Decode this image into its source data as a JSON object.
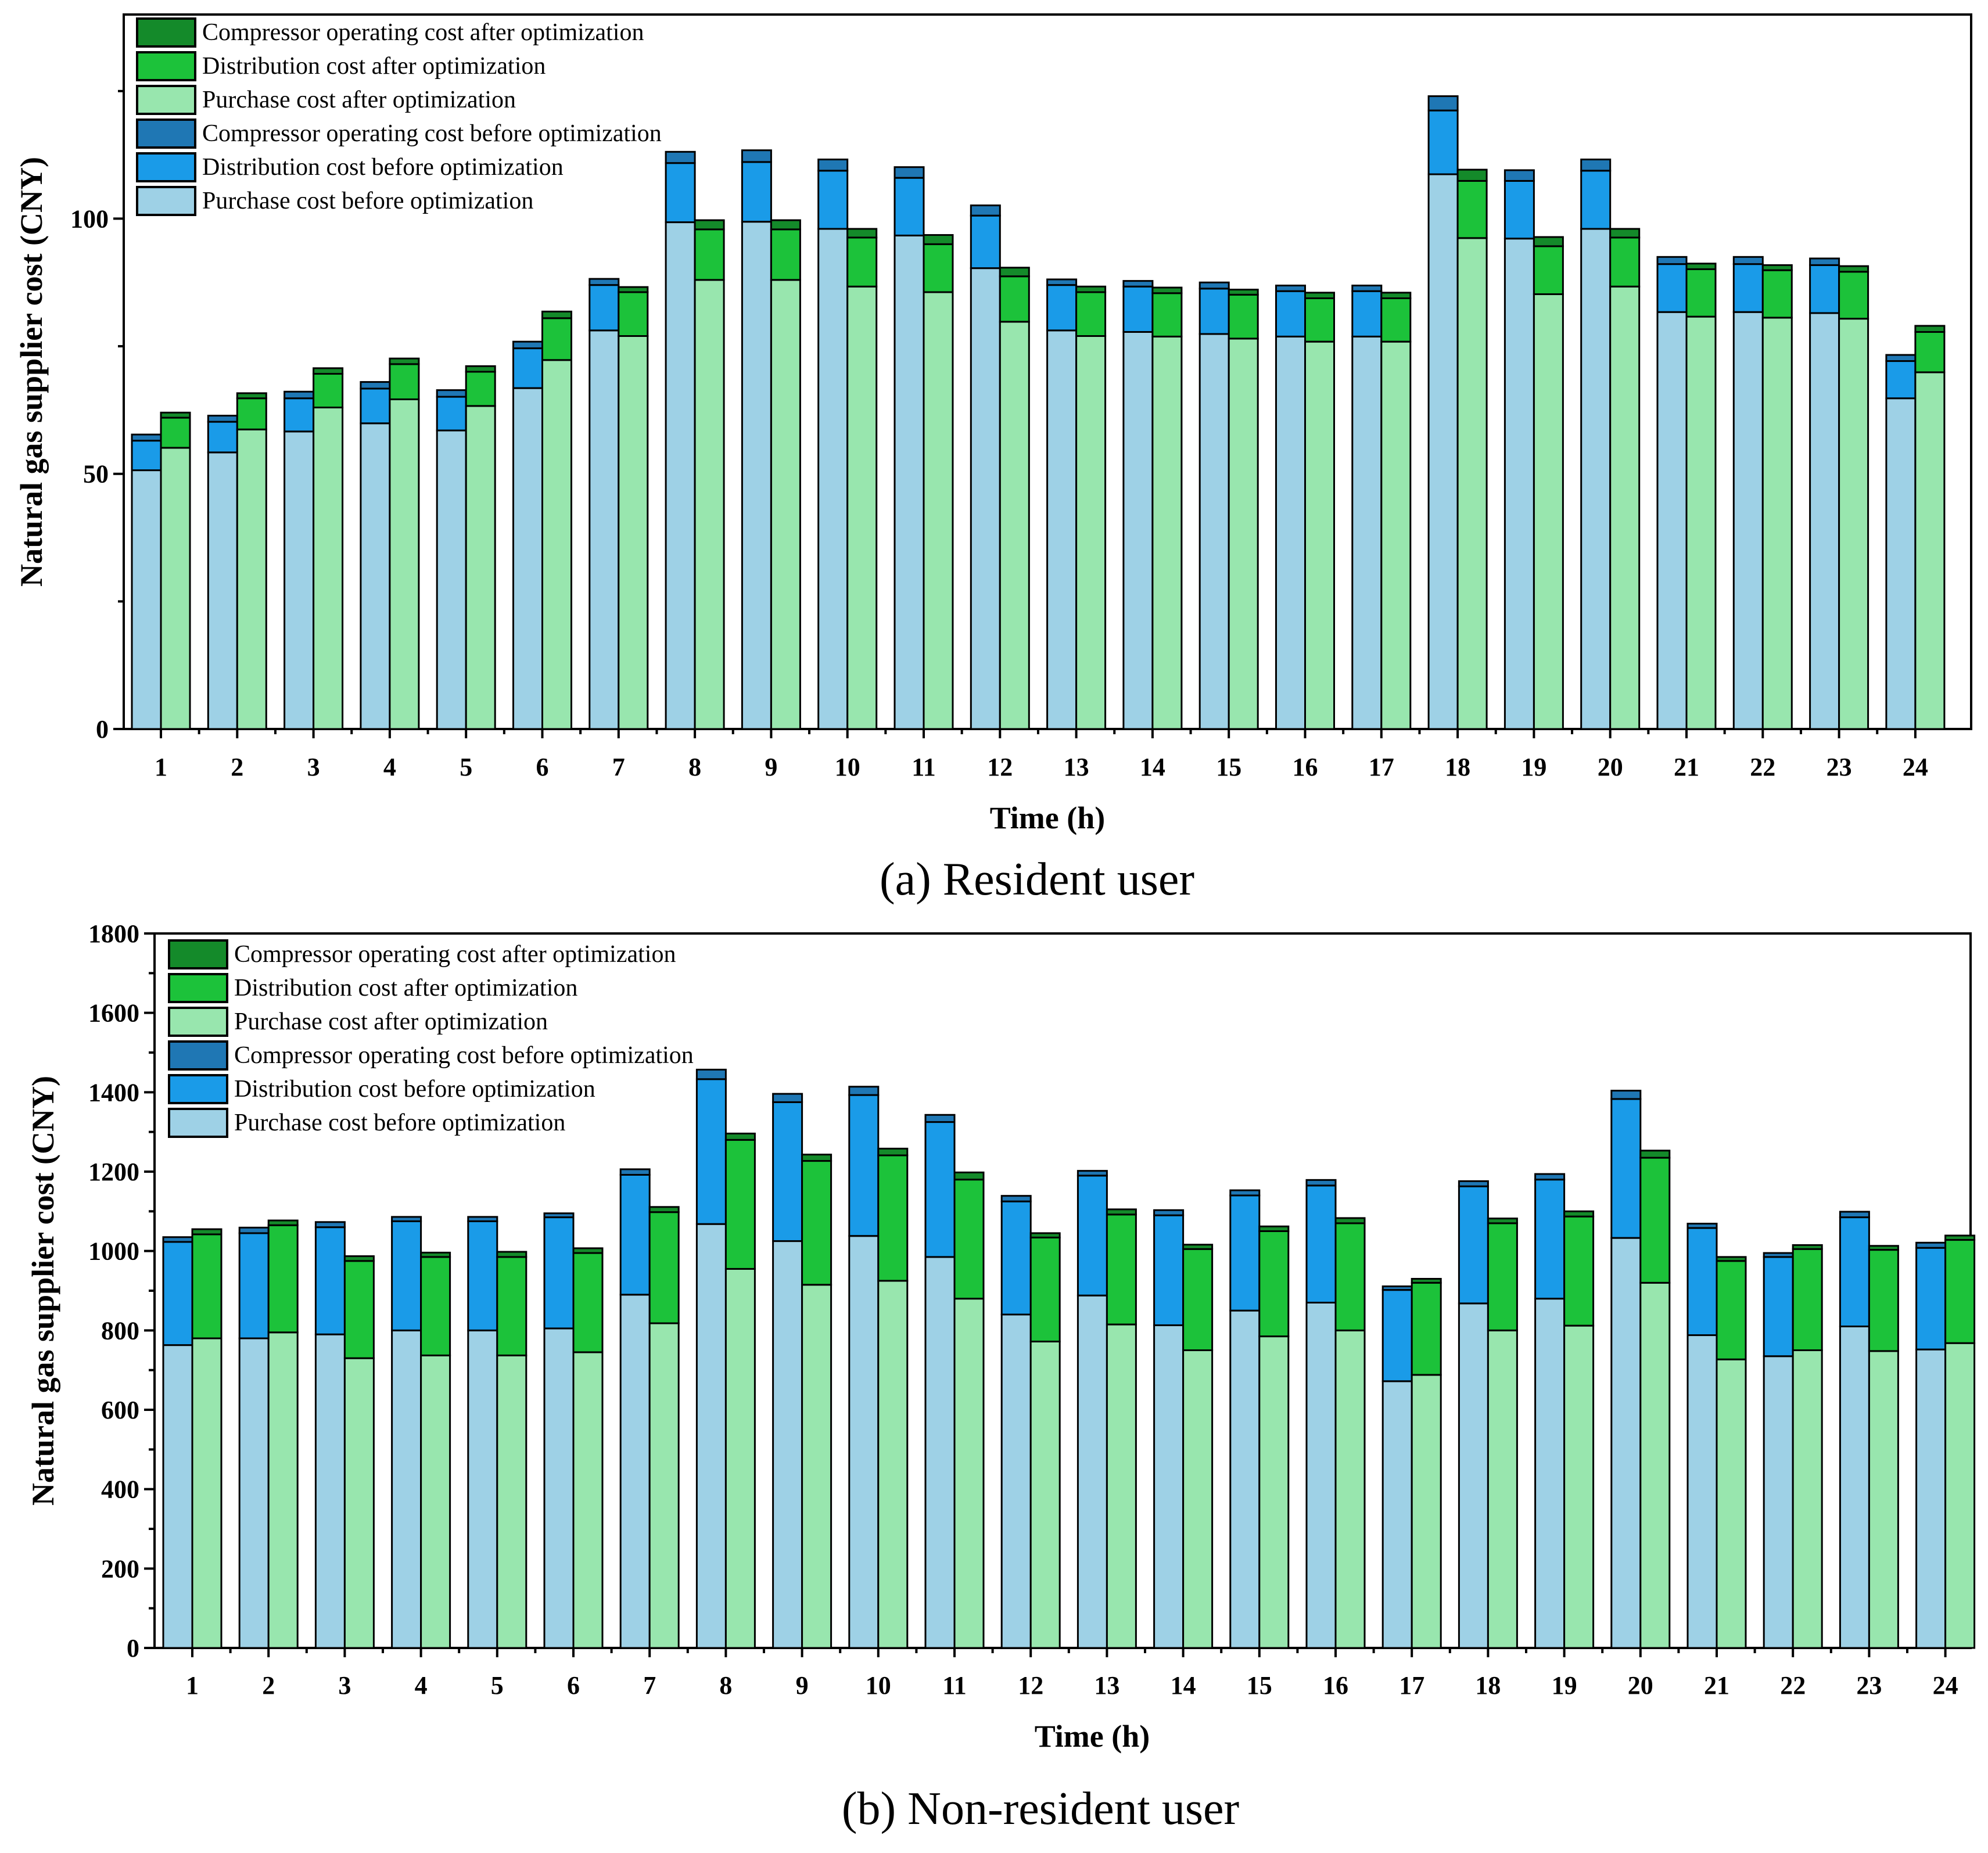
{
  "colors": {
    "purchase_before": "#9ED1E6",
    "distribution_before": "#1A9BE8",
    "compressor_before": "#1F77B4",
    "purchase_after": "#98E6AE",
    "distribution_after": "#1CC23A",
    "compressor_after": "#148A2A"
  },
  "chart_data": [
    {
      "type": "bar",
      "stacked": true,
      "grouped": true,
      "caption": "(a) Resident user",
      "xlabel": "Time (h)",
      "ylabel": "Natural gas supplier cost (CNY)",
      "ylim": [
        0,
        140
      ],
      "yticks": [
        "0",
        "50",
        "100"
      ],
      "ytick_values": [
        0,
        50,
        100
      ],
      "categories": [
        "1",
        "2",
        "3",
        "4",
        "5",
        "6",
        "7",
        "8",
        "9",
        "10",
        "11",
        "12",
        "13",
        "14",
        "15",
        "16",
        "17",
        "18",
        "19",
        "20",
        "21",
        "22",
        "23",
        "24"
      ],
      "legend": [
        {
          "key": "compressor_after",
          "label": "Compressor operating cost after optimization"
        },
        {
          "key": "distribution_after",
          "label": "Distribution cost after optimization"
        },
        {
          "key": "purchase_after",
          "label": "Purchase cost after optimization"
        },
        {
          "key": "compressor_before",
          "label": "Compressor operating cost before optimization"
        },
        {
          "key": "distribution_before",
          "label": "Distribution cost before optimization"
        },
        {
          "key": "purchase_before",
          "label": "Purchase cost before optimization"
        }
      ],
      "series": [
        {
          "name": "Purchase cost before optimization",
          "group": "before",
          "key": "purchase_before",
          "values": [
            50.7,
            54.2,
            58.3,
            59.9,
            58.5,
            66.8,
            78.1,
            99.3,
            99.4,
            98.0,
            96.7,
            90.3,
            78.1,
            77.8,
            77.4,
            76.9,
            76.9,
            108.7,
            96.1,
            98.0,
            81.7,
            81.7,
            81.5,
            64.8
          ]
        },
        {
          "name": "Distribution cost before optimization",
          "group": "before",
          "key": "distribution_before",
          "values": [
            5.8,
            6.0,
            6.5,
            6.8,
            6.6,
            7.8,
            8.9,
            11.6,
            11.7,
            11.4,
            11.3,
            10.3,
            8.9,
            8.9,
            8.9,
            8.9,
            8.9,
            12.5,
            11.3,
            11.4,
            9.4,
            9.4,
            9.4,
            7.3
          ]
        },
        {
          "name": "Compressor operating cost before optimization",
          "group": "before",
          "key": "compressor_before",
          "values": [
            1.2,
            1.2,
            1.3,
            1.3,
            1.3,
            1.3,
            1.2,
            2.2,
            2.3,
            2.2,
            2.1,
            2.0,
            1.1,
            1.1,
            1.2,
            1.1,
            1.1,
            2.8,
            2.1,
            2.2,
            1.4,
            1.4,
            1.3,
            1.2
          ]
        },
        {
          "name": "Purchase cost after optimization",
          "group": "after",
          "key": "purchase_after",
          "values": [
            55.1,
            58.7,
            63.0,
            64.6,
            63.3,
            72.3,
            77.0,
            88.0,
            88.0,
            86.7,
            85.6,
            79.8,
            77.0,
            76.9,
            76.5,
            75.9,
            75.9,
            96.2,
            85.2,
            86.7,
            80.8,
            80.6,
            80.4,
            69.9
          ]
        },
        {
          "name": "Distribution cost after optimization",
          "group": "after",
          "key": "distribution_after",
          "values": [
            5.9,
            6.1,
            6.6,
            6.9,
            6.7,
            8.2,
            8.6,
            9.9,
            9.9,
            9.6,
            9.4,
            8.9,
            8.6,
            8.5,
            8.6,
            8.5,
            8.5,
            11.2,
            9.4,
            9.6,
            9.3,
            9.3,
            9.2,
            7.9
          ]
        },
        {
          "name": "Compressor operating cost after optimization",
          "group": "after",
          "key": "compressor_after",
          "values": [
            1.0,
            1.0,
            1.1,
            1.1,
            1.1,
            1.3,
            1.0,
            1.8,
            1.8,
            1.7,
            1.8,
            1.7,
            1.1,
            1.1,
            1.0,
            1.1,
            1.1,
            2.2,
            1.8,
            1.7,
            1.1,
            1.0,
            1.1,
            1.2
          ]
        }
      ]
    },
    {
      "type": "bar",
      "stacked": true,
      "grouped": true,
      "caption": "(b) Non-resident user",
      "xlabel": "Time (h)",
      "ylabel": "Natural gas supplier cost (CNY)",
      "ylim": [
        0,
        1800
      ],
      "yticks": [
        "0",
        "200",
        "400",
        "600",
        "800",
        "1000",
        "1200",
        "1400",
        "1600",
        "1800"
      ],
      "ytick_values": [
        0,
        200,
        400,
        600,
        800,
        1000,
        1200,
        1400,
        1600,
        1800
      ],
      "categories": [
        "1",
        "2",
        "3",
        "4",
        "5",
        "6",
        "7",
        "8",
        "9",
        "10",
        "11",
        "12",
        "13",
        "14",
        "15",
        "16",
        "17",
        "18",
        "19",
        "20",
        "21",
        "22",
        "23",
        "24"
      ],
      "legend": [
        {
          "key": "compressor_after",
          "label": "Compressor operating cost after optimization"
        },
        {
          "key": "distribution_after",
          "label": "Distribution cost after optimization"
        },
        {
          "key": "purchase_after",
          "label": "Purchase cost after optimization"
        },
        {
          "key": "compressor_before",
          "label": "Compressor operating cost before optimization"
        },
        {
          "key": "distribution_before",
          "label": "Distribution cost before optimization"
        },
        {
          "key": "purchase_before",
          "label": "Purchase cost before optimization"
        }
      ],
      "series": [
        {
          "name": "Purchase cost before optimization",
          "group": "before",
          "key": "purchase_before",
          "values": [
            763,
            780,
            790,
            800,
            800,
            805,
            890,
            1068,
            1025,
            1038,
            985,
            840,
            888,
            813,
            850,
            870,
            672,
            868,
            880,
            1033,
            788,
            735,
            810,
            752
          ]
        },
        {
          "name": "Distribution cost before optimization",
          "group": "before",
          "key": "distribution_before",
          "values": [
            260,
            265,
            270,
            275,
            275,
            280,
            302,
            365,
            350,
            355,
            340,
            285,
            302,
            277,
            290,
            295,
            230,
            295,
            300,
            350,
            270,
            250,
            275,
            256
          ]
        },
        {
          "name": "Compressor operating cost before optimization",
          "group": "before",
          "key": "compressor_before",
          "values": [
            12,
            14,
            13,
            11,
            11,
            10,
            14,
            24,
            21,
            21,
            18,
            14,
            12,
            13,
            13,
            14,
            9,
            13,
            14,
            21,
            11,
            10,
            14,
            13
          ]
        },
        {
          "name": "Purchase cost after optimization",
          "group": "after",
          "key": "purchase_after",
          "values": [
            780,
            795,
            730,
            737,
            737,
            745,
            818,
            955,
            915,
            925,
            880,
            772,
            815,
            750,
            785,
            800,
            688,
            800,
            812,
            920,
            727,
            750,
            748,
            768
          ]
        },
        {
          "name": "Distribution cost after optimization",
          "group": "after",
          "key": "distribution_after",
          "values": [
            262,
            270,
            245,
            248,
            248,
            250,
            280,
            325,
            312,
            316,
            300,
            262,
            277,
            255,
            265,
            270,
            232,
            270,
            275,
            315,
            248,
            255,
            255,
            260
          ]
        },
        {
          "name": "Compressor operating cost after optimization",
          "group": "after",
          "key": "compressor_after",
          "values": [
            13,
            12,
            12,
            11,
            13,
            12,
            13,
            16,
            16,
            17,
            18,
            11,
            13,
            11,
            12,
            13,
            10,
            12,
            13,
            18,
            10,
            10,
            10,
            11
          ]
        }
      ]
    }
  ]
}
